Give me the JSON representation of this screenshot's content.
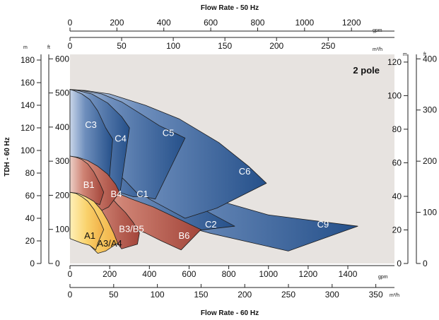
{
  "chart_data": {
    "type": "area",
    "title": "",
    "annotation": "2 pole",
    "axes": {
      "top_title": "Flow Rate - 50 Hz",
      "bottom_title": "Flow Rate - 60 Hz",
      "left_title": "TDH - 60 Hz",
      "gpm_50": {
        "unit": "gpm",
        "ticks": [
          "0",
          "200",
          "400",
          "600",
          "800",
          "1000",
          "1200"
        ]
      },
      "m3h_50": {
        "unit": "m³/h",
        "ticks": [
          "0",
          "50",
          "100",
          "150",
          "200",
          "250"
        ]
      },
      "gpm_60": {
        "unit": "gpm",
        "ticks": [
          "0",
          "200",
          "400",
          "600",
          "800",
          "1000",
          "1200",
          "1400"
        ]
      },
      "m3h_60": {
        "unit": "m³/h",
        "ticks": [
          "0",
          "50",
          "100",
          "150",
          "200",
          "250",
          "300",
          "350"
        ]
      },
      "left_m": {
        "unit": "m",
        "ticks": [
          "0",
          "20",
          "40",
          "60",
          "80",
          "100",
          "120",
          "140",
          "160",
          "180"
        ]
      },
      "left_ft": {
        "unit": "ft",
        "ticks": [
          "0",
          "100",
          "200",
          "300",
          "400",
          "500",
          "600"
        ]
      },
      "right_m": {
        "unit": "m",
        "ticks": [
          "0",
          "20",
          "40",
          "60",
          "80",
          "100",
          "120"
        ]
      },
      "right_ft": {
        "unit": "ft",
        "ticks": [
          "0",
          "100",
          "200",
          "300",
          "400"
        ]
      }
    },
    "series": [
      {
        "name": "C9",
        "color": "#2a5288",
        "polygon": [
          [
            0,
            96
          ],
          [
            60,
            95
          ],
          [
            200,
            92
          ],
          [
            350,
            83
          ],
          [
            500,
            71
          ],
          [
            620,
            62
          ],
          [
            1000,
            43
          ],
          [
            1450,
            33
          ],
          [
            1100,
            11
          ],
          [
            700,
            27
          ],
          [
            430,
            40
          ],
          [
            280,
            53
          ],
          [
            130,
            70
          ],
          [
            0,
            79
          ]
        ]
      },
      {
        "name": "C2",
        "color": "#2a5288",
        "polygon": [
          [
            0,
            96
          ],
          [
            50,
            95
          ],
          [
            150,
            92
          ],
          [
            250,
            85
          ],
          [
            380,
            74
          ],
          [
            540,
            58
          ],
          [
            670,
            48
          ],
          [
            830,
            33
          ],
          [
            580,
            28
          ],
          [
            430,
            40
          ],
          [
            280,
            53
          ],
          [
            130,
            70
          ],
          [
            0,
            79
          ]
        ]
      },
      {
        "name": "C1",
        "color": "#2d5c94",
        "polygon": [
          [
            0,
            96
          ],
          [
            50,
            95
          ],
          [
            130,
            92
          ],
          [
            200,
            86
          ],
          [
            300,
            76
          ],
          [
            400,
            64
          ],
          [
            430,
            60
          ],
          [
            320,
            59
          ],
          [
            230,
            64
          ],
          [
            120,
            72
          ],
          [
            0,
            79
          ]
        ]
      },
      {
        "name": "C6",
        "color": "#2a5288",
        "polygon": [
          [
            0,
            154
          ],
          [
            80,
            153
          ],
          [
            200,
            150
          ],
          [
            380,
            140
          ],
          [
            550,
            128
          ],
          [
            750,
            107
          ],
          [
            900,
            86
          ],
          [
            990,
            71
          ],
          [
            740,
            49
          ],
          [
            580,
            40
          ],
          [
            400,
            57
          ],
          [
            280,
            73
          ],
          [
            150,
            95
          ],
          [
            0,
            110
          ]
        ]
      },
      {
        "name": "C5",
        "color": "#2d5a93",
        "polygon": [
          [
            0,
            154
          ],
          [
            60,
            153
          ],
          [
            160,
            150
          ],
          [
            260,
            143
          ],
          [
            360,
            132
          ],
          [
            450,
            122
          ],
          [
            580,
            111
          ],
          [
            430,
            57
          ],
          [
            350,
            60
          ],
          [
            280,
            73
          ],
          [
            150,
            95
          ],
          [
            0,
            110
          ]
        ]
      },
      {
        "name": "C4",
        "color": "#33609a",
        "polygon": [
          [
            0,
            154
          ],
          [
            40,
            153
          ],
          [
            110,
            150
          ],
          [
            190,
            142
          ],
          [
            260,
            130
          ],
          [
            300,
            120
          ],
          [
            250,
            60
          ],
          [
            210,
            66
          ],
          [
            130,
            80
          ],
          [
            0,
            95
          ]
        ]
      },
      {
        "name": "C3",
        "color": "#3b67a0",
        "polygon": [
          [
            0,
            154
          ],
          [
            20,
            153
          ],
          [
            60,
            150
          ],
          [
            100,
            145
          ],
          [
            140,
            135
          ],
          [
            180,
            120
          ],
          [
            215,
            110
          ],
          [
            195,
            68
          ],
          [
            140,
            76
          ],
          [
            0,
            95
          ]
        ]
      },
      {
        "name": "B6",
        "color": "#a4483d",
        "polygon": [
          [
            0,
            75
          ],
          [
            50,
            74
          ],
          [
            120,
            70
          ],
          [
            200,
            65
          ],
          [
            310,
            57
          ],
          [
            420,
            50
          ],
          [
            540,
            40
          ],
          [
            660,
            30
          ],
          [
            560,
            12
          ],
          [
            460,
            20
          ],
          [
            380,
            27
          ],
          [
            290,
            33
          ],
          [
            200,
            40
          ],
          [
            110,
            47
          ],
          [
            0,
            55
          ]
        ]
      },
      {
        "name": "B3/B5",
        "color": "#b85a4c",
        "polygon": [
          [
            0,
            75
          ],
          [
            40,
            74
          ],
          [
            80,
            72
          ],
          [
            120,
            70
          ],
          [
            160,
            66
          ],
          [
            200,
            60
          ],
          [
            240,
            52
          ],
          [
            280,
            45
          ],
          [
            320,
            36
          ],
          [
            350,
            27
          ],
          [
            340,
            17
          ],
          [
            260,
            13
          ],
          [
            230,
            20
          ],
          [
            180,
            27
          ],
          [
            130,
            33
          ],
          [
            80,
            40
          ],
          [
            0,
            47
          ]
        ]
      },
      {
        "name": "B4",
        "color": "#b24f43",
        "polygon": [
          [
            0,
            95
          ],
          [
            40,
            94
          ],
          [
            90,
            91
          ],
          [
            140,
            86
          ],
          [
            190,
            79
          ],
          [
            230,
            70
          ],
          [
            250,
            63
          ],
          [
            195,
            50
          ],
          [
            160,
            47
          ],
          [
            120,
            52
          ],
          [
            80,
            57
          ],
          [
            0,
            63
          ]
        ]
      },
      {
        "name": "B1",
        "color": "#c46b58",
        "polygon": [
          [
            0,
            95
          ],
          [
            30,
            94
          ],
          [
            60,
            92
          ],
          [
            90,
            88
          ],
          [
            120,
            81
          ],
          [
            150,
            71
          ],
          [
            170,
            63
          ],
          [
            150,
            52
          ],
          [
            120,
            54
          ],
          [
            80,
            57
          ],
          [
            0,
            63
          ]
        ]
      },
      {
        "name": "A3/A4",
        "color": "#f0b04e",
        "polygon": [
          [
            0,
            63
          ],
          [
            40,
            62
          ],
          [
            80,
            59
          ],
          [
            120,
            55
          ],
          [
            160,
            47
          ],
          [
            190,
            38
          ],
          [
            220,
            27
          ],
          [
            240,
            18
          ],
          [
            180,
            11
          ],
          [
            140,
            9
          ],
          [
            100,
            16
          ],
          [
            70,
            21
          ],
          [
            0,
            25
          ]
        ]
      },
      {
        "name": "A1",
        "color": "#f7c75a",
        "polygon": [
          [
            0,
            63
          ],
          [
            30,
            62
          ],
          [
            60,
            59
          ],
          [
            90,
            55
          ],
          [
            120,
            48
          ],
          [
            150,
            38
          ],
          [
            170,
            30
          ],
          [
            140,
            18
          ],
          [
            130,
            12
          ],
          [
            100,
            16
          ],
          [
            60,
            18
          ],
          [
            0,
            22
          ]
        ]
      }
    ],
    "labels": [
      {
        "text": "C3",
        "x": 105,
        "y": 123,
        "dark": false
      },
      {
        "text": "C4",
        "x": 255,
        "y": 111,
        "dark": false
      },
      {
        "text": "C5",
        "x": 495,
        "y": 116,
        "dark": false
      },
      {
        "text": "C6",
        "x": 880,
        "y": 82,
        "dark": false
      },
      {
        "text": "C1",
        "x": 365,
        "y": 62,
        "dark": false
      },
      {
        "text": "C2",
        "x": 710,
        "y": 35,
        "dark": false
      },
      {
        "text": "C9",
        "x": 1275,
        "y": 35,
        "dark": false
      },
      {
        "text": "B1",
        "x": 95,
        "y": 70,
        "dark": false
      },
      {
        "text": "B4",
        "x": 233,
        "y": 62,
        "dark": false
      },
      {
        "text": "B3/B5",
        "x": 310,
        "y": 31,
        "dark": false
      },
      {
        "text": "B6",
        "x": 575,
        "y": 25,
        "dark": false
      },
      {
        "text": "A1",
        "x": 100,
        "y": 25,
        "dark": true
      },
      {
        "text": "A3/A4",
        "x": 200,
        "y": 18,
        "dark": true
      }
    ]
  }
}
